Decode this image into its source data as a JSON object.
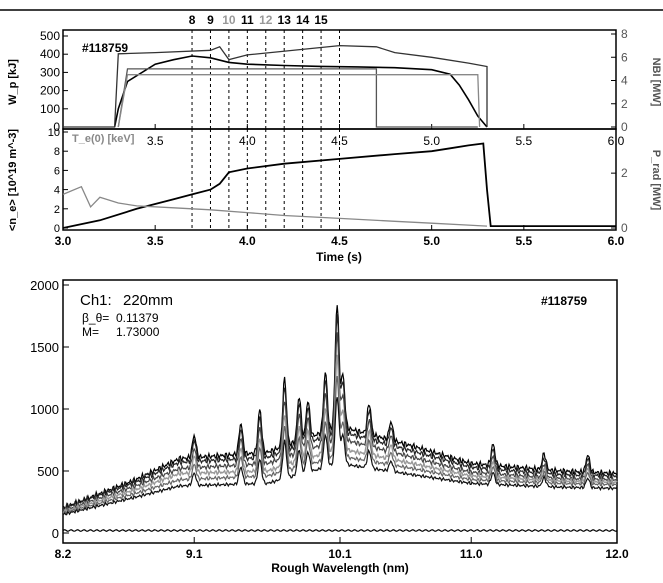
{
  "chart_data": [
    {
      "type": "line",
      "panel": "top-upper",
      "shot_label": "#118759",
      "ylabel_left": "W_p [kJ]",
      "ylabel_right": "NBI [MW]",
      "x_ticks": [
        "3.5",
        "4.0",
        "4.5",
        "5.0",
        "5.5",
        "6.0"
      ],
      "y_ticks_left": [
        "0",
        "100",
        "200",
        "300",
        "400",
        "500"
      ],
      "y_ticks_right": [
        "0",
        "2",
        "4",
        "6",
        "8"
      ],
      "xlim": [
        3.0,
        6.0
      ],
      "ylim_left": [
        0,
        500
      ],
      "ylim_right": [
        0,
        8
      ],
      "marker_labels": [
        "8",
        "9",
        "10",
        "11",
        "12",
        "13",
        "14",
        "15"
      ],
      "marker_times": [
        3.7,
        3.8,
        3.9,
        4.0,
        4.1,
        4.2,
        4.3,
        4.4,
        4.5
      ],
      "series": [
        {
          "axis": "left",
          "x": [
            3.28,
            3.3,
            3.35,
            3.5,
            3.6,
            3.7,
            3.8,
            3.9,
            4.0,
            4.2,
            4.4,
            4.6,
            4.8,
            5.0,
            5.1,
            5.15,
            5.2,
            5.25,
            5.3
          ],
          "y": [
            0,
            100,
            250,
            345,
            370,
            390,
            380,
            355,
            345,
            338,
            333,
            330,
            326,
            315,
            290,
            230,
            150,
            60,
            0
          ]
        },
        {
          "axis": "right",
          "x": [
            3.0,
            3.28,
            3.3,
            3.5,
            3.8,
            3.85,
            3.9,
            4.0,
            4.5,
            4.7,
            4.8,
            5.0,
            5.2,
            5.3,
            5.3
          ],
          "y": [
            0,
            0,
            6.3,
            6.4,
            6.6,
            6.9,
            5.8,
            6.2,
            7.0,
            6.9,
            6.4,
            6.0,
            5.5,
            5.2,
            0
          ]
        },
        {
          "axis": "right",
          "x": [
            3.3,
            3.35,
            4.7,
            4.7,
            5.2,
            5.25
          ],
          "y": [
            0,
            5.0,
            5.0,
            0,
            0,
            0
          ]
        },
        {
          "axis": "right",
          "x": [
            3.3,
            3.35,
            5.25,
            5.26
          ],
          "y": [
            0,
            4.5,
            4.5,
            0
          ]
        }
      ]
    },
    {
      "type": "line",
      "panel": "top-lower",
      "inline_label": "T_e(0) [keV]",
      "ylabel_left": "<n_e> [10^19 m^-3]",
      "ylabel_right": "P_rad [MW]",
      "xlabel": "Time (s)",
      "x_ticks": [
        "3.0",
        "3.5",
        "4.0",
        "4.5",
        "5.0",
        "5.5",
        "6.0"
      ],
      "y_ticks_left": [
        "0",
        "2",
        "4",
        "6",
        "8",
        "10"
      ],
      "y_ticks_right": [
        "0",
        "2"
      ],
      "xlim": [
        3.0,
        6.0
      ],
      "ylim_left": [
        0,
        10
      ],
      "ylim_right": [
        0,
        3.5
      ],
      "marker_times": [
        3.7,
        3.8,
        3.9,
        4.0,
        4.1,
        4.2,
        4.3,
        4.4,
        4.5
      ],
      "series": [
        {
          "axis": "left",
          "x": [
            3.0,
            3.2,
            3.4,
            3.6,
            3.7,
            3.8,
            3.85,
            3.9,
            4.0,
            4.2,
            4.5,
            4.8,
            5.0,
            5.1,
            5.2,
            5.28,
            5.3,
            5.32,
            6.0
          ],
          "y": [
            0,
            0.8,
            2.0,
            3.0,
            3.5,
            4.0,
            4.6,
            5.8,
            6.2,
            6.7,
            7.2,
            7.7,
            8.0,
            8.3,
            8.6,
            8.8,
            4.0,
            0.2,
            0.2
          ]
        },
        {
          "axis": "left",
          "x": [
            3.0,
            3.1,
            3.15,
            3.2,
            3.3,
            3.4,
            3.6,
            3.8,
            4.0,
            4.2,
            4.5,
            4.8,
            5.0,
            5.2,
            5.3
          ],
          "y": [
            3.5,
            4.3,
            2.2,
            3.2,
            2.6,
            2.3,
            2.1,
            1.9,
            1.6,
            1.3,
            1.0,
            0.7,
            0.5,
            0.3,
            0.2
          ]
        }
      ]
    },
    {
      "type": "line",
      "panel": "spectrum",
      "channel_label": "Ch1:",
      "channel_value": "220mm",
      "shot_label": "#118759",
      "param1_label": "β_θ=",
      "param1_value": "0.11379",
      "param2_label": "M=",
      "param2_value": "1.73000",
      "xlabel": "Rough Wavelength (nm)",
      "x_ticks": [
        "8.2",
        "9.1",
        "10.1",
        "11.0",
        "12.0"
      ],
      "y_ticks": [
        "0",
        "500",
        "1000",
        "1500",
        "2000"
      ],
      "xlim": [
        8.2,
        12.0
      ],
      "ylim": [
        0,
        2000
      ],
      "peaks": [
        {
          "x": 9.1,
          "h": 180
        },
        {
          "x": 9.42,
          "h": 250
        },
        {
          "x": 9.55,
          "h": 350
        },
        {
          "x": 9.72,
          "h": 550
        },
        {
          "x": 9.82,
          "h": 360
        },
        {
          "x": 9.88,
          "h": 300
        },
        {
          "x": 10.0,
          "h": 480
        },
        {
          "x": 10.08,
          "h": 1000
        },
        {
          "x": 10.12,
          "h": 420
        },
        {
          "x": 10.3,
          "h": 250
        },
        {
          "x": 10.45,
          "h": 150
        },
        {
          "x": 11.15,
          "h": 170
        },
        {
          "x": 11.5,
          "h": 130
        },
        {
          "x": 11.8,
          "h": 140
        }
      ],
      "series": [
        {
          "scale": 1.0,
          "base": [
            [
              8.2,
              200
            ],
            [
              8.7,
              430
            ],
            [
              9.0,
              600
            ],
            [
              9.6,
              650
            ],
            [
              10.1,
              860
            ],
            [
              10.6,
              700
            ],
            [
              11.0,
              560
            ],
            [
              11.6,
              500
            ],
            [
              12.0,
              480
            ]
          ]
        },
        {
          "scale": 0.95,
          "base": [
            [
              8.2,
              200
            ],
            [
              8.7,
              410
            ],
            [
              9.0,
              570
            ],
            [
              9.6,
              610
            ],
            [
              10.1,
              820
            ],
            [
              10.6,
              660
            ],
            [
              11.0,
              530
            ],
            [
              11.6,
              470
            ],
            [
              12.0,
              460
            ]
          ]
        },
        {
          "scale": 0.85,
          "base": [
            [
              8.2,
              180
            ],
            [
              8.7,
              380
            ],
            [
              9.0,
              520
            ],
            [
              9.6,
              560
            ],
            [
              10.1,
              760
            ],
            [
              10.6,
              610
            ],
            [
              11.0,
              490
            ],
            [
              11.6,
              440
            ],
            [
              12.0,
              430
            ]
          ]
        },
        {
          "scale": 0.75,
          "base": [
            [
              8.2,
              170
            ],
            [
              8.7,
              350
            ],
            [
              9.0,
              480
            ],
            [
              9.6,
              500
            ],
            [
              10.1,
              680
            ],
            [
              10.6,
              560
            ],
            [
              11.0,
              460
            ],
            [
              11.6,
              420
            ],
            [
              12.0,
              410
            ]
          ]
        },
        {
          "scale": 0.65,
          "base": [
            [
              8.2,
              160
            ],
            [
              8.7,
              320
            ],
            [
              9.0,
              430
            ],
            [
              9.6,
              460
            ],
            [
              10.1,
              620
            ],
            [
              10.6,
              520
            ],
            [
              11.0,
              430
            ],
            [
              11.6,
              400
            ],
            [
              12.0,
              390
            ]
          ]
        },
        {
          "scale": 0.55,
          "base": [
            [
              8.2,
              150
            ],
            [
              8.7,
              290
            ],
            [
              9.0,
              380
            ],
            [
              9.6,
              400
            ],
            [
              10.1,
              560
            ],
            [
              10.6,
              470
            ],
            [
              11.0,
              400
            ],
            [
              11.6,
              370
            ],
            [
              12.0,
              360
            ]
          ]
        },
        {
          "scale": 0.0,
          "base": [
            [
              8.2,
              20
            ],
            [
              12.0,
              20
            ]
          ]
        }
      ]
    }
  ]
}
